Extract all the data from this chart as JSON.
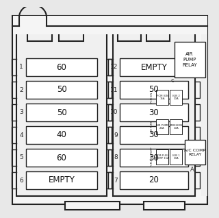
{
  "bg_color": "#e8e8e8",
  "panel_bg": "#f2f2f2",
  "border_color": "#222222",
  "white": "#ffffff",
  "left_fuses": [
    {
      "num": "1",
      "label": "60"
    },
    {
      "num": "2",
      "label": "50"
    },
    {
      "num": "3",
      "label": "50"
    },
    {
      "num": "4",
      "label": "40"
    },
    {
      "num": "5",
      "label": "60"
    },
    {
      "num": "6",
      "label": "EMPTY"
    }
  ],
  "right_fuses": [
    {
      "num": "12",
      "label": "EMPTY"
    },
    {
      "num": "11",
      "label": "50"
    },
    {
      "num": "10",
      "label": "30"
    },
    {
      "num": "9",
      "label": "30"
    },
    {
      "num": "8",
      "label": "30"
    },
    {
      "num": "7",
      "label": "20"
    }
  ]
}
